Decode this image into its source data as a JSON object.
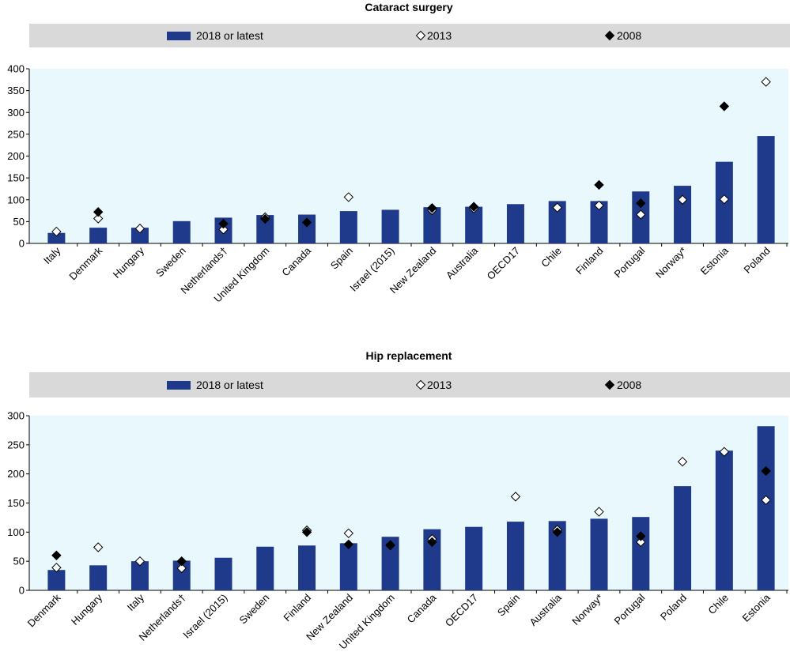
{
  "chart_data": [
    {
      "type": "bar",
      "title": "Cataract surgery",
      "legend": {
        "bar": "2018 or latest",
        "open": "2013",
        "filled": "2008",
        "placement": "top"
      },
      "ylim": [
        0,
        400
      ],
      "yticks": [
        "0",
        "50",
        "100",
        "150",
        "200",
        "250",
        "300",
        "350",
        "400"
      ],
      "categories": [
        "Italy",
        "Denmark",
        "Hungary",
        "Sweden",
        "Netherlands†",
        "United Kingdom",
        "Canada",
        "Spain",
        "Israel (2015)",
        "New Zealand",
        "Australia",
        "OECD17",
        "Chile",
        "Finland",
        "Portugal",
        "Norway*",
        "Estonia",
        "Poland"
      ],
      "series": [
        {
          "name": "2018 or latest",
          "kind": "bar",
          "values": [
            24,
            36,
            36,
            51,
            59,
            65,
            66,
            74,
            77,
            83,
            84,
            90,
            97,
            97,
            119,
            132,
            187,
            246
          ]
        },
        {
          "name": "2013",
          "kind": "open-diamond",
          "values": [
            27,
            57,
            34,
            null,
            32,
            60,
            null,
            106,
            null,
            76,
            80,
            null,
            82,
            87,
            66,
            100,
            101,
            370
          ]
        },
        {
          "name": "2008",
          "kind": "filled-diamond",
          "values": [
            null,
            72,
            null,
            null,
            45,
            56,
            48,
            null,
            null,
            81,
            84,
            null,
            null,
            134,
            92,
            null,
            314,
            null
          ]
        }
      ],
      "grid": false
    },
    {
      "type": "bar",
      "title": "Hip replacement",
      "legend": {
        "bar": "2018 or latest",
        "open": "2013",
        "filled": "2008",
        "placement": "top"
      },
      "ylim": [
        0,
        300
      ],
      "yticks": [
        "0",
        "50",
        "100",
        "150",
        "200",
        "250",
        "300"
      ],
      "categories": [
        "Denmark",
        "Hungary",
        "Italy",
        "Netherlands†",
        "Israel (2015)",
        "Sweden",
        "Finland",
        "New Zealand",
        "United Kingdom",
        "Canada",
        "OECD17",
        "Spain",
        "Australia",
        "Norway*",
        "Portugal",
        "Poland",
        "Chile",
        "Estonia"
      ],
      "series": [
        {
          "name": "2018 or latest",
          "kind": "bar",
          "values": [
            35,
            43,
            50,
            51,
            56,
            75,
            77,
            81,
            92,
            105,
            109,
            118,
            119,
            123,
            126,
            179,
            240,
            282
          ]
        },
        {
          "name": "2013",
          "kind": "open-diamond",
          "values": [
            39,
            74,
            50,
            38,
            null,
            null,
            103,
            98,
            77,
            88,
            null,
            161,
            104,
            135,
            83,
            221,
            238,
            155
          ]
        },
        {
          "name": "2008",
          "kind": "filled-diamond",
          "values": [
            60,
            null,
            null,
            50,
            null,
            null,
            100,
            79,
            78,
            83,
            null,
            null,
            100,
            null,
            93,
            null,
            null,
            205
          ]
        }
      ],
      "grid": false
    }
  ],
  "colors": {
    "bar": "#1f3a8a",
    "plot_bg": "#e8f8fc",
    "legend_bg": "#d9d9d9"
  }
}
